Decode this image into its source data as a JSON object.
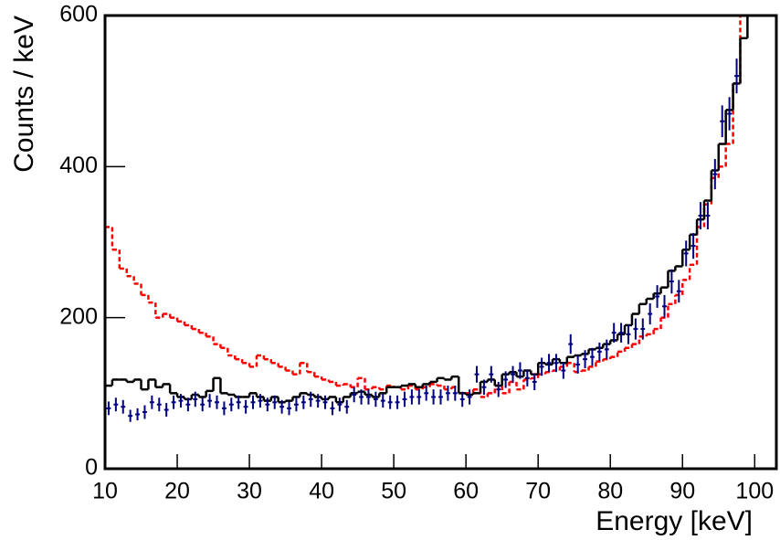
{
  "chart_data": {
    "type": "histogram",
    "x_label": "Energy [keV]",
    "y_label": "Counts / keV",
    "xlim": [
      10,
      103
    ],
    "ylim": [
      0,
      600
    ],
    "xticks": [
      10,
      20,
      30,
      40,
      50,
      60,
      70,
      80,
      90,
      100
    ],
    "yticks": [
      0,
      200,
      400,
      600
    ],
    "bins": [
      10,
      11,
      12,
      13,
      14,
      15,
      16,
      17,
      18,
      19,
      20,
      21,
      22,
      23,
      24,
      25,
      26,
      27,
      28,
      29,
      30,
      31,
      32,
      33,
      34,
      35,
      36,
      37,
      38,
      39,
      40,
      41,
      42,
      43,
      44,
      45,
      46,
      47,
      48,
      49,
      50,
      51,
      52,
      53,
      54,
      55,
      56,
      57,
      58,
      59,
      60,
      61,
      62,
      63,
      64,
      65,
      66,
      67,
      68,
      69,
      70,
      71,
      72,
      73,
      74,
      75,
      76,
      77,
      78,
      79,
      80,
      81,
      82,
      83,
      84,
      85,
      86,
      87,
      88,
      89,
      90,
      91,
      92,
      93,
      94,
      95,
      96,
      97,
      98,
      99,
      100
    ],
    "series": [
      {
        "style": "step",
        "color": "#000000",
        "values": [
          110,
          118,
          118,
          115,
          118,
          105,
          118,
          108,
          112,
          100,
          95,
          92,
          98,
          95,
          103,
          120,
          100,
          98,
          95,
          95,
          100,
          95,
          90,
          95,
          88,
          90,
          95,
          100,
          98,
          95,
          92,
          95,
          88,
          95,
          100,
          102,
          98,
          95,
          100,
          108,
          108,
          110,
          112,
          108,
          112,
          115,
          120,
          118,
          122,
          100,
          98,
          100,
          115,
          118,
          110,
          125,
          128,
          122,
          130,
          125,
          140,
          138,
          145,
          140,
          148,
          150,
          152,
          158,
          160,
          165,
          170,
          178,
          190,
          205,
          218,
          225,
          232,
          240,
          262,
          268,
          290,
          310,
          330,
          355,
          395,
          430,
          475,
          510,
          570,
          600
        ]
      },
      {
        "style": "dashed-step",
        "color": "#ff0000",
        "values": [
          320,
          290,
          265,
          255,
          245,
          230,
          220,
          200,
          205,
          200,
          195,
          190,
          185,
          180,
          175,
          165,
          160,
          150,
          145,
          140,
          135,
          150,
          145,
          140,
          135,
          130,
          125,
          140,
          128,
          122,
          118,
          115,
          110,
          112,
          108,
          120,
          105,
          108,
          105,
          110,
          108,
          105,
          110,
          105,
          108,
          112,
          110,
          105,
          108,
          100,
          100,
          105,
          95,
          100,
          110,
          100,
          115,
          105,
          118,
          120,
          125,
          128,
          130,
          135,
          140,
          128,
          130,
          135,
          142,
          145,
          148,
          155,
          160,
          165,
          175,
          178,
          185,
          200,
          218,
          230,
          250,
          270,
          320,
          350,
          385,
          400,
          430,
          510,
          600,
          600
        ]
      },
      {
        "style": "points",
        "color": "#000080",
        "values": [
          80,
          85,
          82,
          70,
          72,
          75,
          88,
          85,
          78,
          88,
          90,
          85,
          92,
          85,
          90,
          88,
          80,
          85,
          88,
          82,
          88,
          90,
          85,
          88,
          82,
          80,
          85,
          88,
          92,
          90,
          88,
          80,
          85,
          82,
          98,
          95,
          95,
          92,
          90,
          88,
          88,
          92,
          95,
          95,
          100,
          95,
          95,
          100,
          100,
          92,
          95,
          125,
          108,
          125,
          105,
          118,
          125,
          130,
          120,
          115,
          135,
          140,
          140,
          130,
          165,
          138,
          145,
          148,
          155,
          158,
          180,
          180,
          178,
          185,
          185,
          205,
          228,
          215,
          248,
          235,
          285,
          295,
          335,
          335,
          390,
          460,
          470,
          520,
          null,
          null
        ],
        "errors": [
          9,
          9,
          9,
          8,
          8,
          9,
          9,
          9,
          9,
          9,
          9,
          9,
          10,
          9,
          9,
          9,
          9,
          9,
          9,
          9,
          9,
          9,
          9,
          9,
          9,
          9,
          9,
          9,
          10,
          9,
          9,
          9,
          9,
          9,
          10,
          10,
          10,
          10,
          9,
          9,
          9,
          10,
          10,
          10,
          10,
          10,
          10,
          10,
          10,
          10,
          10,
          11,
          10,
          11,
          10,
          11,
          11,
          11,
          11,
          11,
          12,
          12,
          12,
          11,
          13,
          12,
          12,
          12,
          12,
          13,
          13,
          13,
          13,
          14,
          14,
          14,
          15,
          15,
          16,
          15,
          17,
          17,
          18,
          18,
          20,
          21,
          22,
          23,
          null,
          null
        ]
      }
    ]
  }
}
